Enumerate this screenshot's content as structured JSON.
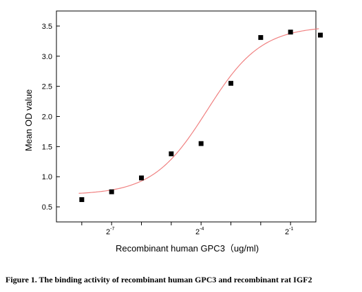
{
  "caption": "Figure 1. The binding activity of recombinant human GPC3 and recombinant rat IGF2",
  "chart_data": {
    "type": "scatter",
    "xlabel": "Recombinant human  GPC3（ug/ml)",
    "ylabel": "Mean OD value",
    "x_scale": "log2",
    "xlim": [
      -8.85,
      -0.15
    ],
    "ylim": [
      0.25,
      3.75
    ],
    "x_ticks_labeled": [
      {
        "value": -7,
        "base": "2",
        "exp": "-7"
      },
      {
        "value": -4,
        "base": "2",
        "exp": "-4"
      },
      {
        "value": -1,
        "base": "2",
        "exp": "-1"
      }
    ],
    "x_ticks_minor": [
      -9,
      -8,
      -6,
      -5,
      -3,
      -2,
      0
    ],
    "y_ticks": [
      "0.5",
      "1.0",
      "1.5",
      "2.0",
      "2.5",
      "3.0",
      "3.5"
    ],
    "points": [
      {
        "log2_x": -8,
        "y": 0.62
      },
      {
        "log2_x": -7,
        "y": 0.75
      },
      {
        "log2_x": -6,
        "y": 0.98
      },
      {
        "log2_x": -5,
        "y": 1.38
      },
      {
        "log2_x": -4,
        "y": 1.55
      },
      {
        "log2_x": -3,
        "y": 2.55
      },
      {
        "log2_x": -2,
        "y": 3.31
      },
      {
        "log2_x": -1,
        "y": 3.4
      },
      {
        "log2_x": 0,
        "y": 3.35
      }
    ],
    "fit": {
      "type": "4PL",
      "bottom": 0.7,
      "top": 3.5,
      "center_log2_x": -3.8,
      "slope": 1.1,
      "color": "#f08080"
    },
    "marker_color": "#000000",
    "grid": false,
    "legend": "none"
  }
}
